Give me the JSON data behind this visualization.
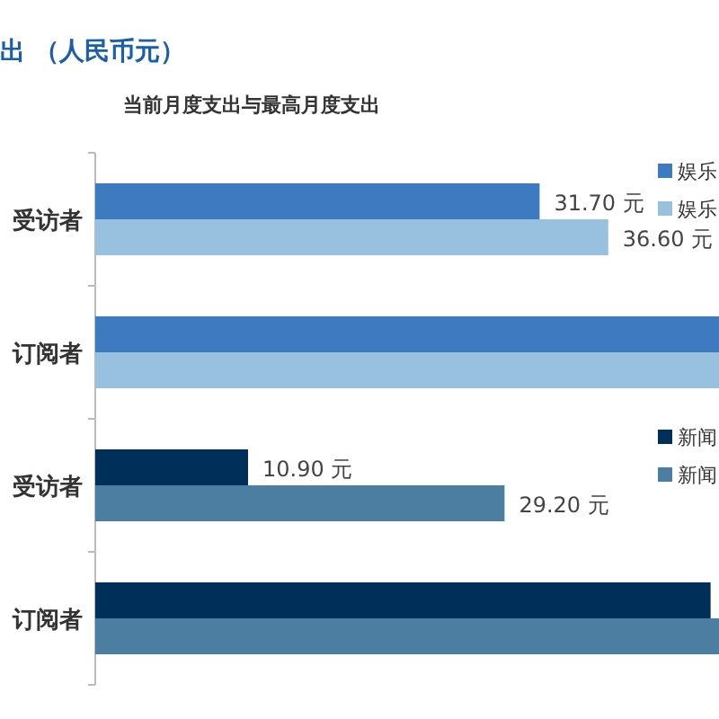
{
  "chart_data": [
    {
      "type": "bar",
      "orientation": "horizontal",
      "title": "出 （人民币元）",
      "subtitle": "当前月度支出与最高月度支出",
      "categories": [
        "受访者",
        "订阅者"
      ],
      "xlim": [
        0,
        44.5
      ],
      "tick_labels": "y",
      "legend": "right",
      "series": [
        {
          "name": "娱乐",
          "color": "#3d7abf",
          "values": [
            31.7,
            44.5
          ],
          "value_labels": [
            "31.70 元",
            null
          ]
        },
        {
          "name": "娱乐",
          "color": "#98c1e0",
          "values": [
            36.6,
            44.5
          ],
          "value_labels": [
            "36.60 元",
            null
          ]
        }
      ]
    },
    {
      "type": "bar",
      "orientation": "horizontal",
      "categories": [
        "受访者",
        "订阅者"
      ],
      "xlim": [
        0,
        44.5
      ],
      "tick_labels": "y",
      "legend": "right",
      "series": [
        {
          "name": "新闻",
          "color": "#002f5a",
          "values": [
            10.9,
            43.9
          ],
          "value_labels": [
            "10.90 元",
            null
          ]
        },
        {
          "name": "新闻",
          "color": "#4b7ea0",
          "values": [
            29.2,
            44.5
          ],
          "value_labels": [
            "29.20 元",
            null
          ]
        }
      ]
    }
  ]
}
